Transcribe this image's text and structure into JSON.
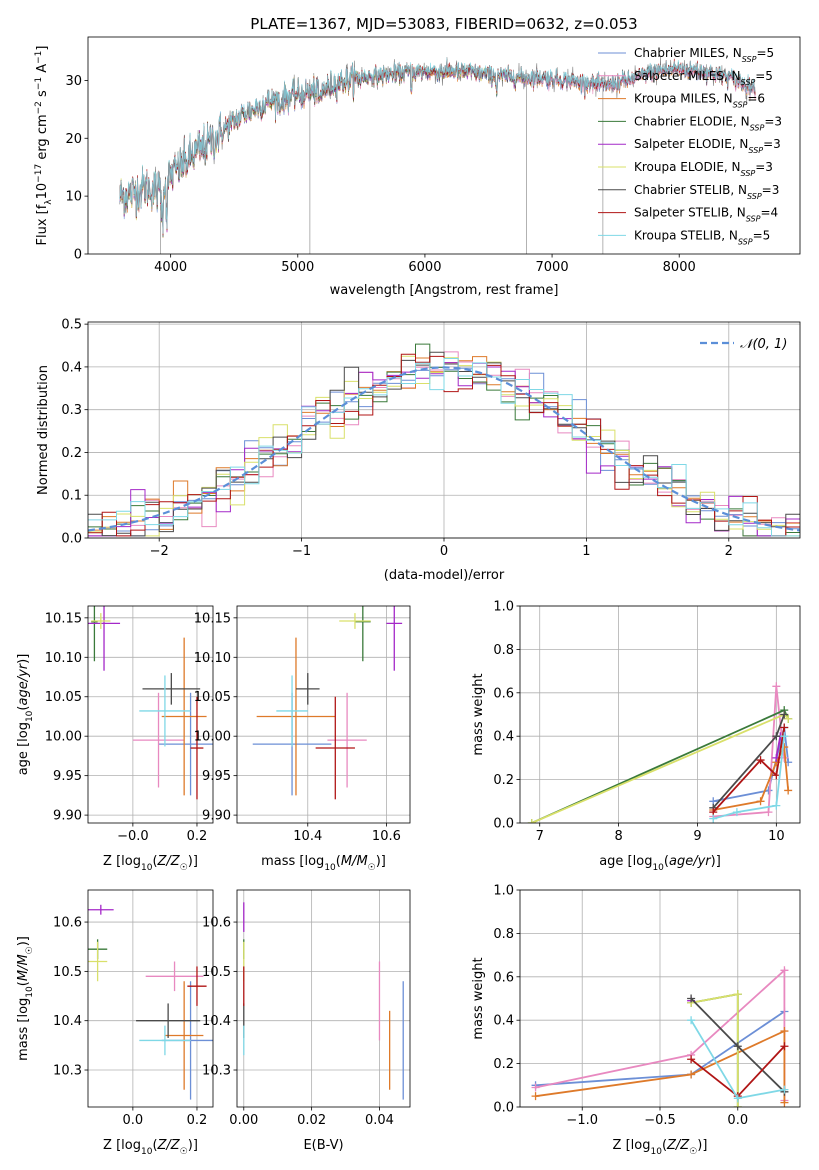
{
  "title": "PLATE=1367, MJD=53083, FIBERID=0632, z=0.053",
  "colors": {
    "Chabrier MILES": "#6c8fd6",
    "Salpeter MILES": "#e889c0",
    "Kroupa MILES": "#de7a2a",
    "Chabrier ELODIE": "#3a7a3a",
    "Salpeter ELODIE": "#a428c8",
    "Kroupa ELODIE": "#d9e06a",
    "Chabrier STELIB": "#4a4a4a",
    "Salpeter STELIB": "#b01515",
    "Kroupa STELIB": "#7fd8e6"
  },
  "chart_data": [
    {
      "id": "spectrum",
      "type": "line",
      "xlabel": "wavelength [Angstrom, rest frame]",
      "ylabel_parts": [
        "Flux [f",
        "λ",
        "10",
        "−17",
        " erg cm",
        "−2",
        " s",
        "−1",
        " A",
        "−1",
        "]"
      ],
      "xlim": [
        3350,
        8950
      ],
      "ylim": [
        0,
        37.5
      ],
      "xticks": [
        4000,
        5000,
        6000,
        7000,
        8000
      ],
      "yticks": [
        0,
        10,
        20,
        30
      ],
      "grid": false,
      "legend_position": "upper right",
      "legend": [
        {
          "label": "Chabrier MILES, N",
          "sub": "SSP",
          "suffix": "=5",
          "model": "Chabrier MILES"
        },
        {
          "label": "Salpeter MILES, N",
          "sub": "SSP",
          "suffix": "=5",
          "model": "Salpeter MILES"
        },
        {
          "label": "Kroupa MILES, N",
          "sub": "SSP",
          "suffix": "=6",
          "model": "Kroupa MILES"
        },
        {
          "label": "Chabrier ELODIE, N",
          "sub": "SSP",
          "suffix": "=3",
          "model": "Chabrier ELODIE"
        },
        {
          "label": "Salpeter ELODIE, N",
          "sub": "SSP",
          "suffix": "=3",
          "model": "Salpeter ELODIE"
        },
        {
          "label": "Kroupa ELODIE, N",
          "sub": "SSP",
          "suffix": "=3",
          "model": "Kroupa ELODIE"
        },
        {
          "label": "Chabrier STELIB, N",
          "sub": "SSP",
          "suffix": "=3",
          "model": "Chabrier STELIB"
        },
        {
          "label": "Salpeter STELIB, N",
          "sub": "SSP",
          "suffix": "=4",
          "model": "Salpeter STELIB"
        },
        {
          "label": "Kroupa STELIB, N",
          "sub": "SSP",
          "suffix": "=5",
          "model": "Kroupa STELIB"
        }
      ],
      "data_color": "#808080",
      "continuum": [
        [
          3600,
          10
        ],
        [
          3700,
          10.5
        ],
        [
          3800,
          11.5
        ],
        [
          3900,
          11
        ],
        [
          3950,
          12
        ],
        [
          4000,
          13.5
        ],
        [
          4100,
          15.5
        ],
        [
          4200,
          17.5
        ],
        [
          4300,
          19
        ],
        [
          4400,
          21
        ],
        [
          4500,
          23
        ],
        [
          4600,
          24.5
        ],
        [
          4700,
          25.5
        ],
        [
          4800,
          26.5
        ],
        [
          4900,
          27
        ],
        [
          5000,
          27.5
        ],
        [
          5100,
          28
        ],
        [
          5200,
          28.5
        ],
        [
          5300,
          29.5
        ],
        [
          5400,
          30
        ],
        [
          5500,
          30.5
        ],
        [
          5700,
          31
        ],
        [
          5900,
          31.5
        ],
        [
          6100,
          31.5
        ],
        [
          6300,
          31.5
        ],
        [
          6500,
          31
        ],
        [
          6700,
          30.5
        ],
        [
          6900,
          30.5
        ],
        [
          7100,
          30
        ],
        [
          7300,
          29.5
        ],
        [
          7400,
          29
        ],
        [
          7600,
          30
        ],
        [
          7800,
          31.5
        ],
        [
          8000,
          32
        ],
        [
          8200,
          31.5
        ],
        [
          8400,
          30.5
        ],
        [
          8600,
          28.5
        ]
      ],
      "data_spikes": [
        [
          3920,
          0
        ],
        [
          5095,
          0
        ],
        [
          6800,
          0
        ],
        [
          7400,
          0
        ]
      ]
    },
    {
      "id": "residuals",
      "type": "histogram",
      "xlabel": "(data-model)/error",
      "ylabel": "Normed distribution",
      "xlim": [
        -2.5,
        2.5
      ],
      "ylim": [
        0,
        0.505
      ],
      "xticks": [
        -2,
        -1,
        0,
        1,
        2
      ],
      "yticks": [
        0.0,
        0.1,
        0.2,
        0.3,
        0.4,
        0.5
      ],
      "grid": true,
      "legend_position": "upper right",
      "legend": [
        {
          "label": "𝒩(0, 1)",
          "style": "dashed",
          "color": "#5b8fd8"
        }
      ],
      "bin_width": 0.1,
      "bin_range": [
        -2.5,
        2.5
      ],
      "histogram": "approximately normal N(0,1) for each of the nine models"
    },
    {
      "id": "age_vs_Z",
      "type": "errorbar",
      "xlabel": "Z [log10(Z/Z☉)]",
      "ylabel": "age  [log10(age/yr)]",
      "xlim": [
        -0.14,
        0.25
      ],
      "ylim": [
        9.89,
        10.165
      ],
      "xticks": [
        -0.0,
        0.2
      ],
      "xticklabels": [
        "−0.0",
        "0.2"
      ],
      "yticks": [
        9.9,
        9.95,
        10.0,
        10.05,
        10.1,
        10.15
      ],
      "grid": true,
      "points": [
        {
          "model": "Chabrier MILES",
          "x": 0.18,
          "y": 9.99,
          "xerr": 0.1,
          "yerr": 0.065
        },
        {
          "model": "Salpeter MILES",
          "x": 0.08,
          "y": 9.995,
          "xerr": 0.08,
          "yerr": 0.06
        },
        {
          "model": "Kroupa MILES",
          "x": 0.16,
          "y": 10.025,
          "xerr": 0.07,
          "yerr": 0.1
        },
        {
          "model": "Chabrier ELODIE",
          "x": -0.12,
          "y": 10.145,
          "xerr": 0.01,
          "yerr": 0.05
        },
        {
          "model": "Salpeter ELODIE",
          "x": -0.09,
          "y": 10.143,
          "xerr": 0.05,
          "yerr": 0.06
        },
        {
          "model": "Kroupa ELODIE",
          "x": -0.1,
          "y": 10.146,
          "xerr": 0.03,
          "yerr": 0.01
        },
        {
          "model": "Chabrier STELIB",
          "x": 0.12,
          "y": 10.06,
          "xerr": 0.09,
          "yerr": 0.02
        },
        {
          "model": "Salpeter STELIB",
          "x": 0.2,
          "y": 9.985,
          "xerr": 0.02,
          "yerr": 0.065
        },
        {
          "model": "Kroupa STELIB",
          "x": 0.1,
          "y": 10.032,
          "xerr": 0.08,
          "yerr": 0.045
        }
      ]
    },
    {
      "id": "age_vs_mass",
      "type": "errorbar",
      "xlabel": "mass [log10(M/M☉)]",
      "ylabel": "",
      "xlim": [
        10.22,
        10.66
      ],
      "ylim": [
        9.89,
        10.165
      ],
      "xticks": [
        10.4,
        10.6
      ],
      "yticks": [
        9.9,
        9.95,
        10.0,
        10.05,
        10.1,
        10.15
      ],
      "grid": true,
      "points": [
        {
          "model": "Chabrier MILES",
          "x": 10.36,
          "y": 9.99,
          "xerr": 0.1,
          "yerr": 0.065
        },
        {
          "model": "Salpeter MILES",
          "x": 10.5,
          "y": 9.995,
          "xerr": 0.05,
          "yerr": 0.06
        },
        {
          "model": "Kroupa MILES",
          "x": 10.37,
          "y": 10.025,
          "xerr": 0.1,
          "yerr": 0.1
        },
        {
          "model": "Chabrier ELODIE",
          "x": 10.54,
          "y": 10.145,
          "xerr": 0.02,
          "yerr": 0.05
        },
        {
          "model": "Salpeter ELODIE",
          "x": 10.62,
          "y": 10.143,
          "xerr": 0.02,
          "yerr": 0.06
        },
        {
          "model": "Kroupa ELODIE",
          "x": 10.52,
          "y": 10.146,
          "xerr": 0.04,
          "yerr": 0.01
        },
        {
          "model": "Chabrier STELIB",
          "x": 10.4,
          "y": 10.06,
          "xerr": 0.03,
          "yerr": 0.02
        },
        {
          "model": "Salpeter STELIB",
          "x": 10.47,
          "y": 9.985,
          "xerr": 0.05,
          "yerr": 0.065
        },
        {
          "model": "Kroupa STELIB",
          "x": 10.36,
          "y": 10.032,
          "xerr": 0.04,
          "yerr": 0.045
        }
      ]
    },
    {
      "id": "weight_vs_age",
      "type": "line",
      "xlabel": "age  [log10(age/yr)]",
      "ylabel": "mass weight",
      "xlim": [
        6.75,
        10.3
      ],
      "ylim": [
        0,
        1
      ],
      "xticks": [
        7,
        8,
        9,
        10
      ],
      "yticks": [
        0.0,
        0.2,
        0.4,
        0.6,
        0.8,
        1.0
      ],
      "grid": true,
      "series": [
        {
          "model": "Chabrier MILES",
          "x": [
            9.2,
            9.9,
            10.1,
            10.15
          ],
          "y": [
            0.1,
            0.15,
            0.44,
            0.28
          ]
        },
        {
          "model": "Salpeter MILES",
          "x": [
            9.2,
            9.9,
            10.0,
            10.1
          ],
          "y": [
            0.03,
            0.05,
            0.63,
            0.3
          ]
        },
        {
          "model": "Kroupa MILES",
          "x": [
            9.2,
            9.8,
            10.0,
            10.1,
            10.15
          ],
          "y": [
            0.06,
            0.1,
            0.28,
            0.35,
            0.15
          ]
        },
        {
          "model": "Chabrier ELODIE",
          "x": [
            6.9,
            10.1,
            10.15
          ],
          "y": [
            0.0,
            0.52,
            0.48
          ]
        },
        {
          "model": "Salpeter ELODIE",
          "x": [
            10.0,
            10.05
          ],
          "y": [
            0.3,
            0.4
          ]
        },
        {
          "model": "Kroupa ELODIE",
          "x": [
            6.9,
            10.1,
            10.15
          ],
          "y": [
            0.0,
            0.5,
            0.48
          ]
        },
        {
          "model": "Chabrier STELIB",
          "x": [
            9.2,
            10.0,
            10.1
          ],
          "y": [
            0.07,
            0.4,
            0.5
          ]
        },
        {
          "model": "Salpeter STELIB",
          "x": [
            9.2,
            9.8,
            10.0,
            10.1
          ],
          "y": [
            0.05,
            0.29,
            0.22,
            0.44
          ]
        },
        {
          "model": "Kroupa STELIB",
          "x": [
            9.2,
            9.5,
            10.0,
            10.1
          ],
          "y": [
            0.02,
            0.05,
            0.08,
            0.4
          ]
        }
      ]
    },
    {
      "id": "mass_vs_Z",
      "type": "errorbar",
      "xlabel": "Z [log10(Z/Z☉)]",
      "ylabel": "mass [log10(M/M☉)]",
      "xlim": [
        -0.14,
        0.25
      ],
      "ylim": [
        10.225,
        10.665
      ],
      "xticks": [
        0.0,
        0.2
      ],
      "yticks": [
        10.3,
        10.4,
        10.5,
        10.6
      ],
      "grid": true,
      "points": [
        {
          "model": "Chabrier MILES",
          "x": 0.18,
          "y": 10.36,
          "xerr": 0.09,
          "yerr": 0.12
        },
        {
          "model": "Salpeter MILES",
          "x": 0.13,
          "y": 10.49,
          "xerr": 0.09,
          "yerr": 0.03
        },
        {
          "model": "Kroupa MILES",
          "x": 0.16,
          "y": 10.37,
          "xerr": 0.06,
          "yerr": 0.11
        },
        {
          "model": "Chabrier ELODIE",
          "x": -0.11,
          "y": 10.545,
          "xerr": 0.03,
          "yerr": 0.02
        },
        {
          "model": "Salpeter ELODIE",
          "x": -0.1,
          "y": 10.625,
          "xerr": 0.04,
          "yerr": 0.01
        },
        {
          "model": "Kroupa ELODIE",
          "x": -0.11,
          "y": 10.52,
          "xerr": 0.03,
          "yerr": 0.04
        },
        {
          "model": "Chabrier STELIB",
          "x": 0.11,
          "y": 10.4,
          "xerr": 0.1,
          "yerr": 0.035
        },
        {
          "model": "Salpeter STELIB",
          "x": 0.2,
          "y": 10.47,
          "xerr": 0.03,
          "yerr": 0.04
        },
        {
          "model": "Kroupa STELIB",
          "x": 0.1,
          "y": 10.36,
          "xerr": 0.08,
          "yerr": 0.03
        }
      ]
    },
    {
      "id": "mass_vs_ebv",
      "type": "errorbar",
      "xlabel": "E(B-V)",
      "ylabel": "",
      "xlim": [
        -0.002,
        0.049
      ],
      "ylim": [
        10.225,
        10.665
      ],
      "xticks": [
        0.0,
        0.02,
        0.04
      ],
      "xticklabels": [
        "0.00",
        "0.02",
        "0.04"
      ],
      "yticks": [
        10.3,
        10.4,
        10.5,
        10.6
      ],
      "grid": true,
      "points": [
        {
          "model": "Chabrier MILES",
          "x": 0.047,
          "y": 10.36,
          "xerr": 0,
          "yerr": 0.12
        },
        {
          "model": "Salpeter MILES",
          "x": 0.04,
          "y": 10.44,
          "xerr": 0,
          "yerr": 0.08
        },
        {
          "model": "Kroupa MILES",
          "x": 0.043,
          "y": 10.34,
          "xerr": 0,
          "yerr": 0.08
        },
        {
          "model": "Chabrier ELODIE",
          "x": 0.0,
          "y": 10.545,
          "xerr": 0,
          "yerr": 0.02
        },
        {
          "model": "Salpeter ELODIE",
          "x": 0.0,
          "y": 10.61,
          "xerr": 0,
          "yerr": 0.03
        },
        {
          "model": "Kroupa ELODIE",
          "x": 0.0,
          "y": 10.52,
          "xerr": 0,
          "yerr": 0.04
        },
        {
          "model": "Chabrier STELIB",
          "x": 0.0,
          "y": 10.4,
          "xerr": 0,
          "yerr": 0.035
        },
        {
          "model": "Salpeter STELIB",
          "x": 0.0,
          "y": 10.47,
          "xerr": 0,
          "yerr": 0.04
        },
        {
          "model": "Kroupa STELIB",
          "x": 0.0,
          "y": 10.36,
          "xerr": 0,
          "yerr": 0.03
        }
      ]
    },
    {
      "id": "weight_vs_Z",
      "type": "line",
      "xlabel": "Z [log10(Z/Z☉)]",
      "ylabel": "mass weight",
      "xlim": [
        -1.4,
        0.4
      ],
      "ylim": [
        0,
        1
      ],
      "xticks": [
        -1.0,
        -0.5,
        0.0
      ],
      "xticklabels": [
        "−1.0",
        "−0.5",
        "0.0"
      ],
      "yticks": [
        0.0,
        0.2,
        0.4,
        0.6,
        0.8,
        1.0
      ],
      "grid": true,
      "series": [
        {
          "model": "Chabrier MILES",
          "x": [
            -1.3,
            -0.3,
            0.3
          ],
          "y": [
            0.1,
            0.15,
            0.44
          ]
        },
        {
          "model": "Salpeter MILES",
          "x": [
            -1.3,
            -0.3,
            0.3,
            0.3
          ],
          "y": [
            0.09,
            0.24,
            0.63,
            0.03
          ]
        },
        {
          "model": "Kroupa MILES",
          "x": [
            -1.3,
            -0.3,
            0.3,
            0.3
          ],
          "y": [
            0.05,
            0.15,
            0.35,
            0.02
          ]
        },
        {
          "model": "Chabrier ELODIE",
          "x": [
            -0.3,
            0.0,
            0.0
          ],
          "y": [
            0.48,
            0.52,
            0.0
          ]
        },
        {
          "model": "Salpeter ELODIE",
          "x": [
            -0.3
          ],
          "y": [
            0.49
          ]
        },
        {
          "model": "Kroupa ELODIE",
          "x": [
            -0.3,
            0.0,
            0.0
          ],
          "y": [
            0.48,
            0.52,
            0.0
          ]
        },
        {
          "model": "Chabrier STELIB",
          "x": [
            -0.3,
            0.0,
            0.3
          ],
          "y": [
            0.5,
            0.28,
            0.07
          ]
        },
        {
          "model": "Salpeter STELIB",
          "x": [
            -0.3,
            0.0,
            0.3
          ],
          "y": [
            0.22,
            0.05,
            0.28
          ]
        },
        {
          "model": "Kroupa STELIB",
          "x": [
            -0.3,
            0.0,
            0.3
          ],
          "y": [
            0.4,
            0.04,
            0.08
          ]
        }
      ]
    }
  ]
}
